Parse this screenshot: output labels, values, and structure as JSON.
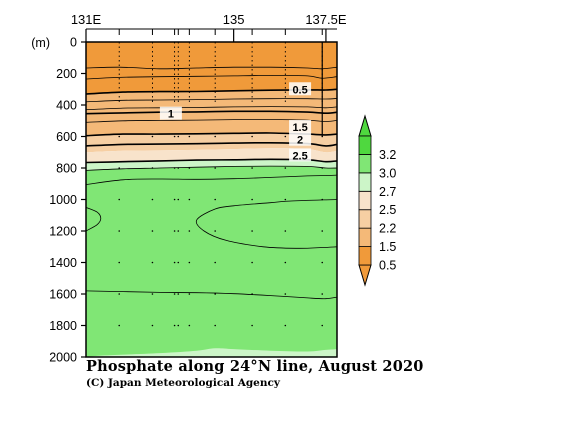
{
  "chart_data": {
    "type": "heatmap",
    "title": "Phosphate along 24°N line, August 2020",
    "credit": "(C) Japan Meteorological Agency",
    "xlabel": "",
    "ylabel": "(m)",
    "xlim": [
      131,
      137.8
    ],
    "ylim": [
      2000,
      0
    ],
    "x_ticks": [
      {
        "value": 131,
        "label": "131E"
      },
      {
        "value": 135,
        "label": "135"
      },
      {
        "value": 137.5,
        "label": "137.5E"
      }
    ],
    "y_ticks": [
      {
        "value": 0,
        "label": "0"
      },
      {
        "value": 200,
        "label": "200"
      },
      {
        "value": 400,
        "label": "400"
      },
      {
        "value": 600,
        "label": "600"
      },
      {
        "value": 800,
        "label": "800"
      },
      {
        "value": 1000,
        "label": "1000"
      },
      {
        "value": 1200,
        "label": "1200"
      },
      {
        "value": 1400,
        "label": "1400"
      },
      {
        "value": 1600,
        "label": "1600"
      },
      {
        "value": 1800,
        "label": "1800"
      },
      {
        "value": 2000,
        "label": "2000"
      }
    ],
    "stations_lon": [
      131.9,
      132.8,
      133.4,
      133.5,
      133.8,
      134.5,
      135.5,
      136.4,
      137.4
    ],
    "layers": [
      {
        "from": "surface",
        "to": "0.5",
        "color": "#f09a3a",
        "y": [
          [
            131,
            330
          ],
          [
            132,
            318
          ],
          [
            133,
            315
          ],
          [
            134,
            314
          ],
          [
            135,
            310
          ],
          [
            136,
            306
          ],
          [
            137,
            304
          ],
          [
            137.5,
            305
          ],
          [
            137.8,
            300
          ]
        ]
      },
      {
        "from": "0.5",
        "to": "1.5",
        "color": "#f4b978",
        "y": [
          [
            131,
            595
          ],
          [
            132,
            585
          ],
          [
            133,
            585
          ],
          [
            134,
            583
          ],
          [
            135,
            580
          ],
          [
            136,
            578
          ],
          [
            137,
            585
          ],
          [
            137.5,
            590
          ],
          [
            137.8,
            585
          ]
        ]
      },
      {
        "from": "1.5",
        "to": "2.2",
        "color": "#f6cfa3",
        "y": [
          [
            131,
            700
          ],
          [
            132,
            690
          ],
          [
            133,
            688
          ],
          [
            134,
            685
          ],
          [
            135,
            680
          ],
          [
            136,
            675
          ],
          [
            137,
            680
          ],
          [
            137.5,
            700
          ],
          [
            137.8,
            690
          ]
        ]
      },
      {
        "from": "2.2",
        "to": "2.5",
        "color": "#f8e3cb",
        "y": [
          [
            131,
            765
          ],
          [
            132,
            760
          ],
          [
            133,
            755
          ],
          [
            134,
            750
          ],
          [
            135,
            748
          ],
          [
            136,
            745
          ],
          [
            137,
            748
          ],
          [
            137.5,
            760
          ],
          [
            137.8,
            755
          ]
        ]
      },
      {
        "from": "2.5",
        "to": "2.7",
        "color": "#ccf5c8",
        "y": [
          [
            131,
            815
          ],
          [
            132,
            805
          ],
          [
            133,
            800
          ],
          [
            134,
            795
          ],
          [
            135,
            790
          ],
          [
            136,
            788
          ],
          [
            137,
            790
          ],
          [
            137.5,
            800
          ],
          [
            137.8,
            800
          ]
        ]
      },
      {
        "from": "2.7",
        "to": "3.0",
        "color": "#80e675",
        "y": [
          [
            131,
            2000
          ],
          [
            137.8,
            2000
          ]
        ]
      }
    ],
    "deep_patch": {
      "level": "2.7",
      "color": "#ccf5c8",
      "y": [
        [
          131,
          2000
        ],
        [
          131.5,
          1990
        ],
        [
          133,
          1975
        ],
        [
          134,
          1960
        ],
        [
          134.5,
          1945
        ],
        [
          135,
          1950
        ],
        [
          136,
          1960
        ],
        [
          137,
          1965
        ],
        [
          137.5,
          1955
        ],
        [
          137.8,
          1950
        ]
      ]
    },
    "contours": [
      {
        "value": 0.3,
        "y": [
          [
            131,
            165
          ],
          [
            131.9,
            160
          ],
          [
            133,
            170
          ],
          [
            134,
            165
          ],
          [
            135,
            160
          ],
          [
            136,
            160
          ],
          [
            137,
            165
          ],
          [
            137.4,
            170
          ],
          [
            137.8,
            160
          ]
        ]
      },
      {
        "value": 0.4,
        "y": [
          [
            131,
            235
          ],
          [
            131.9,
            225
          ],
          [
            133,
            220
          ],
          [
            134,
            218
          ],
          [
            135,
            215
          ],
          [
            136,
            212
          ],
          [
            137,
            215
          ],
          [
            137.4,
            230
          ],
          [
            137.8,
            220
          ]
        ]
      },
      {
        "value": 0.5,
        "y": [
          [
            131,
            330
          ],
          [
            132,
            318
          ],
          [
            133,
            315
          ],
          [
            134,
            314
          ],
          [
            135,
            310
          ],
          [
            136,
            306
          ],
          [
            137,
            304
          ],
          [
            137.5,
            305
          ],
          [
            137.8,
            300
          ]
        ]
      },
      {
        "value": 0.7,
        "y": [
          [
            131,
            380
          ],
          [
            132,
            370
          ],
          [
            133,
            368
          ],
          [
            134,
            366
          ],
          [
            135,
            362
          ],
          [
            136,
            360
          ],
          [
            137,
            360
          ],
          [
            137.5,
            362
          ],
          [
            137.8,
            358
          ]
        ]
      },
      {
        "value": 0.9,
        "y": [
          [
            131,
            430
          ],
          [
            132,
            420
          ],
          [
            133,
            418
          ],
          [
            134,
            416
          ],
          [
            135,
            412
          ],
          [
            136,
            410
          ],
          [
            137,
            412
          ],
          [
            137.5,
            418
          ],
          [
            137.8,
            412
          ]
        ]
      },
      {
        "value": 1.0,
        "y": [
          [
            131,
            455
          ],
          [
            132,
            450
          ],
          [
            133,
            446
          ],
          [
            134,
            444
          ],
          [
            135,
            440
          ],
          [
            136,
            440
          ],
          [
            137,
            445
          ],
          [
            137.5,
            452
          ],
          [
            137.8,
            446
          ]
        ]
      },
      {
        "value": 1.2,
        "y": [
          [
            131,
            510
          ],
          [
            132,
            500
          ],
          [
            133,
            498
          ],
          [
            134,
            496
          ],
          [
            135,
            493
          ],
          [
            136,
            492
          ],
          [
            137,
            496
          ],
          [
            137.5,
            505
          ],
          [
            137.8,
            498
          ]
        ]
      },
      {
        "value": 1.5,
        "y": [
          [
            131,
            595
          ],
          [
            132,
            585
          ],
          [
            133,
            585
          ],
          [
            134,
            583
          ],
          [
            135,
            580
          ],
          [
            136,
            578
          ],
          [
            137,
            585
          ],
          [
            137.5,
            590
          ],
          [
            137.8,
            585
          ]
        ]
      },
      {
        "value": 2.0,
        "y": [
          [
            131,
            660
          ],
          [
            132,
            650
          ],
          [
            133,
            648
          ],
          [
            134,
            646
          ],
          [
            135,
            642
          ],
          [
            136,
            640
          ],
          [
            137,
            645
          ],
          [
            137.5,
            660
          ],
          [
            137.8,
            650
          ]
        ]
      },
      {
        "value": 2.5,
        "y": [
          [
            131,
            765
          ],
          [
            132,
            760
          ],
          [
            133,
            755
          ],
          [
            134,
            750
          ],
          [
            135,
            748
          ],
          [
            136,
            745
          ],
          [
            137,
            748
          ],
          [
            137.5,
            760
          ],
          [
            137.8,
            755
          ]
        ]
      },
      {
        "value": 2.7,
        "y": [
          [
            131,
            815
          ],
          [
            132,
            805
          ],
          [
            133,
            800
          ],
          [
            134,
            795
          ],
          [
            135,
            790
          ],
          [
            136,
            788
          ],
          [
            137,
            790
          ],
          [
            137.5,
            800
          ],
          [
            137.8,
            800
          ]
        ]
      },
      {
        "value": 2.9,
        "y": [
          [
            131,
            905
          ],
          [
            132,
            875
          ],
          [
            133,
            870
          ],
          [
            134,
            872
          ],
          [
            135,
            868
          ],
          [
            136,
            860
          ],
          [
            137,
            850
          ],
          [
            137.5,
            848
          ],
          [
            137.8,
            845
          ]
        ]
      },
      {
        "value": 3.0,
        "y": [
          [
            131,
            1580
          ],
          [
            132,
            1585
          ],
          [
            133,
            1590
          ],
          [
            134,
            1592
          ],
          [
            135,
            1598
          ],
          [
            136,
            1610
          ],
          [
            137,
            1625
          ],
          [
            137.5,
            1630
          ],
          [
            137.8,
            1620
          ]
        ]
      }
    ],
    "contour_loops": [
      {
        "value": 3.0,
        "y": [
          [
            131,
            1050
          ],
          [
            131.3,
            1080
          ],
          [
            131.4,
            1120
          ],
          [
            131.3,
            1160
          ],
          [
            131,
            1200
          ]
        ]
      },
      {
        "value": 3.0,
        "y": [
          [
            137.8,
            1000
          ],
          [
            136.5,
            1010
          ],
          [
            136,
            1020
          ],
          [
            135,
            1040
          ],
          [
            134.5,
            1060
          ],
          [
            134,
            1130
          ],
          [
            134.2,
            1200
          ],
          [
            134.8,
            1260
          ],
          [
            135.8,
            1300
          ],
          [
            136.7,
            1310
          ],
          [
            137.4,
            1305
          ],
          [
            137.8,
            1300
          ]
        ]
      }
    ],
    "contour_labels": [
      {
        "text": "0.5",
        "x": 136.8,
        "y": 300
      },
      {
        "text": "1",
        "x": 133.3,
        "y": 455
      },
      {
        "text": "1.5",
        "x": 136.8,
        "y": 540
      },
      {
        "text": "2",
        "x": 136.8,
        "y": 620
      },
      {
        "text": "2.5",
        "x": 136.8,
        "y": 720
      }
    ],
    "colorbar": {
      "levels": [
        "0.5",
        "1.5",
        "2.2",
        "2.5",
        "2.7",
        "3.0",
        "3.2"
      ],
      "colors": [
        "#f09a3a",
        "#f4b978",
        "#f6cfa3",
        "#f8e3cb",
        "#ccf5c8",
        "#80e675",
        "#4fd83f"
      ],
      "low_color": "#f09a3a",
      "high_color": "#4fd83f"
    }
  }
}
